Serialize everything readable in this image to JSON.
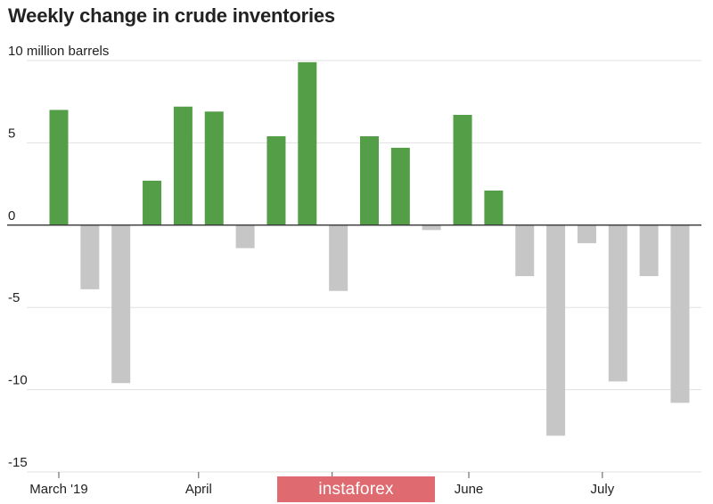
{
  "chart_data": {
    "type": "bar",
    "title": "Weekly change in crude inventories",
    "ylabel": "million barrels",
    "ylim": [
      -15,
      10
    ],
    "yticks": [
      {
        "value": 10,
        "label": "10 million barrels"
      },
      {
        "value": 5,
        "label": "5"
      },
      {
        "value": 0,
        "label": "0"
      },
      {
        "value": -5,
        "label": "-5"
      },
      {
        "value": -10,
        "label": "-10"
      },
      {
        "value": -15,
        "label": "-15"
      }
    ],
    "xticks": [
      {
        "index": 0,
        "label": "March '19"
      },
      {
        "index": 4.5,
        "label": "April"
      },
      {
        "index": 8.8,
        "label": ""
      },
      {
        "index": 13.2,
        "label": "June"
      },
      {
        "index": 17.5,
        "label": "July"
      }
    ],
    "values": [
      7.0,
      -3.9,
      -9.6,
      2.7,
      7.2,
      6.9,
      -1.4,
      5.4,
      9.9,
      -4.0,
      5.4,
      4.7,
      -0.3,
      6.7,
      2.1,
      -3.1,
      -12.8,
      -1.1,
      -9.5,
      -3.1,
      -10.8
    ],
    "colors": {
      "positive": "#559e48",
      "negative": "#c6c6c6",
      "gridline": "#e1e1e1",
      "zero_line": "#333333",
      "watermark_bg": "#df6a70"
    },
    "grid": true
  },
  "watermark": {
    "text": "instaforex"
  }
}
